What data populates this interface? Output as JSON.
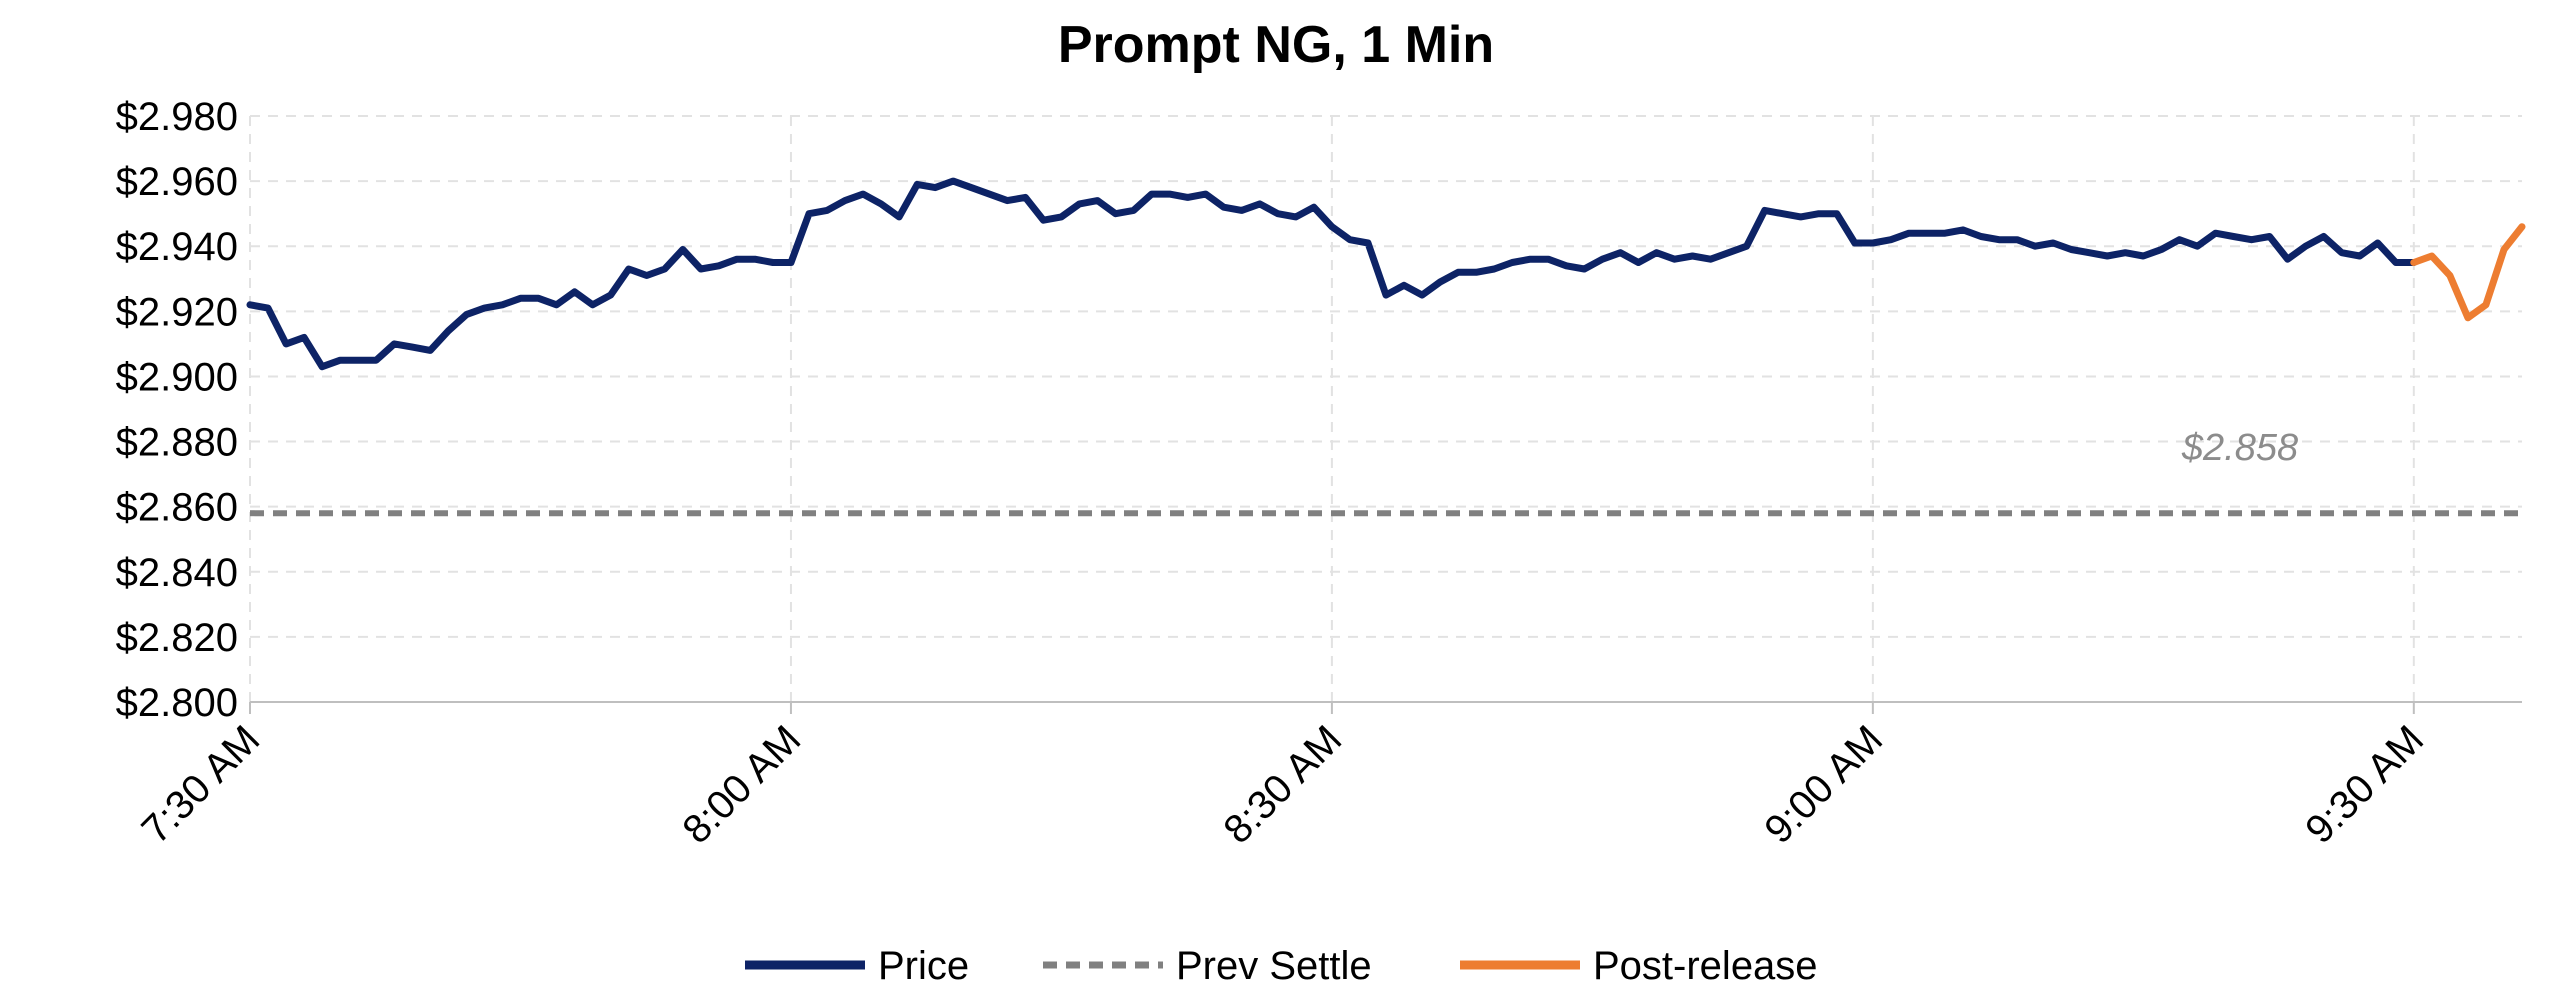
{
  "chart_data": {
    "type": "line",
    "title": "Prompt NG, 1 Min",
    "xlabel": "",
    "ylabel": "",
    "ylim": [
      2.8,
      2.98
    ],
    "y_ticks": [
      2.8,
      2.82,
      2.84,
      2.86,
      2.88,
      2.9,
      2.92,
      2.94,
      2.96,
      2.98
    ],
    "y_tick_format": "$0.000",
    "x_range_minutes": [
      0,
      126
    ],
    "x_ticks": [
      {
        "minute": 0,
        "label": "7:30 AM"
      },
      {
        "minute": 30,
        "label": "8:00 AM"
      },
      {
        "minute": 60,
        "label": "8:30 AM"
      },
      {
        "minute": 90,
        "label": "9:00 AM"
      },
      {
        "minute": 120,
        "label": "9:30 AM"
      }
    ],
    "grid": true,
    "legend_position": "bottom",
    "colors": {
      "price": "#0d2366",
      "prev_settle": "#808080",
      "post_release": "#ed7d31",
      "grid": "#e2e2e2",
      "axis": "#bfbfbf",
      "settle_label": "#8c8c8c"
    },
    "settle_label": "$2.858",
    "series": [
      {
        "name": "Price",
        "style": "solid",
        "x": [
          0,
          1,
          2,
          3,
          4,
          5,
          6,
          7,
          8,
          9,
          10,
          11,
          12,
          13,
          14,
          15,
          16,
          17,
          18,
          19,
          20,
          21,
          22,
          23,
          24,
          25,
          26,
          27,
          28,
          29,
          30,
          31,
          32,
          33,
          34,
          35,
          36,
          37,
          38,
          39,
          40,
          41,
          42,
          43,
          44,
          45,
          46,
          47,
          48,
          49,
          50,
          51,
          52,
          53,
          54,
          55,
          56,
          57,
          58,
          59,
          60,
          61,
          62,
          63,
          64,
          65,
          66,
          67,
          68,
          69,
          70,
          71,
          72,
          73,
          74,
          75,
          76,
          77,
          78,
          79,
          80,
          81,
          82,
          83,
          84,
          85,
          86,
          87,
          88,
          89,
          90,
          91,
          92,
          93,
          94,
          95,
          96,
          97,
          98,
          99,
          100,
          101,
          102,
          103,
          104,
          105,
          106,
          107,
          108,
          109,
          110,
          111,
          112,
          113,
          114,
          115,
          116,
          117,
          118,
          119,
          120
        ],
        "values": [
          2.922,
          2.921,
          2.91,
          2.912,
          2.903,
          2.905,
          2.905,
          2.905,
          2.91,
          2.909,
          2.908,
          2.914,
          2.919,
          2.921,
          2.922,
          2.924,
          2.924,
          2.922,
          2.926,
          2.922,
          2.925,
          2.933,
          2.931,
          2.933,
          2.939,
          2.933,
          2.934,
          2.936,
          2.936,
          2.935,
          2.935,
          2.95,
          2.951,
          2.954,
          2.956,
          2.953,
          2.949,
          2.959,
          2.958,
          2.96,
          2.958,
          2.956,
          2.954,
          2.955,
          2.948,
          2.949,
          2.953,
          2.954,
          2.95,
          2.951,
          2.956,
          2.956,
          2.955,
          2.956,
          2.952,
          2.951,
          2.953,
          2.95,
          2.949,
          2.952,
          2.946,
          2.942,
          2.941,
          2.925,
          2.928,
          2.925,
          2.929,
          2.932,
          2.932,
          2.933,
          2.935,
          2.936,
          2.936,
          2.934,
          2.933,
          2.936,
          2.938,
          2.935,
          2.938,
          2.936,
          2.937,
          2.936,
          2.938,
          2.94,
          2.951,
          2.95,
          2.949,
          2.95,
          2.95,
          2.941,
          2.941,
          2.942,
          2.944,
          2.944,
          2.944,
          2.945,
          2.943,
          2.942,
          2.942,
          2.94,
          2.941,
          2.939,
          2.938,
          2.937,
          2.938,
          2.937,
          2.939,
          2.942,
          2.94,
          2.944,
          2.943,
          2.942,
          2.943,
          2.936,
          2.94,
          2.943,
          2.938,
          2.937,
          2.941,
          2.935,
          2.935
        ]
      },
      {
        "name": "Prev Settle",
        "style": "dashed",
        "x": [
          0,
          126
        ],
        "values": [
          2.858,
          2.858
        ]
      },
      {
        "name": "Post-release",
        "style": "solid",
        "x": [
          120,
          121,
          122,
          123,
          124,
          125,
          126
        ],
        "values": [
          2.935,
          2.937,
          2.931,
          2.918,
          2.922,
          2.939,
          2.946
        ]
      }
    ]
  }
}
